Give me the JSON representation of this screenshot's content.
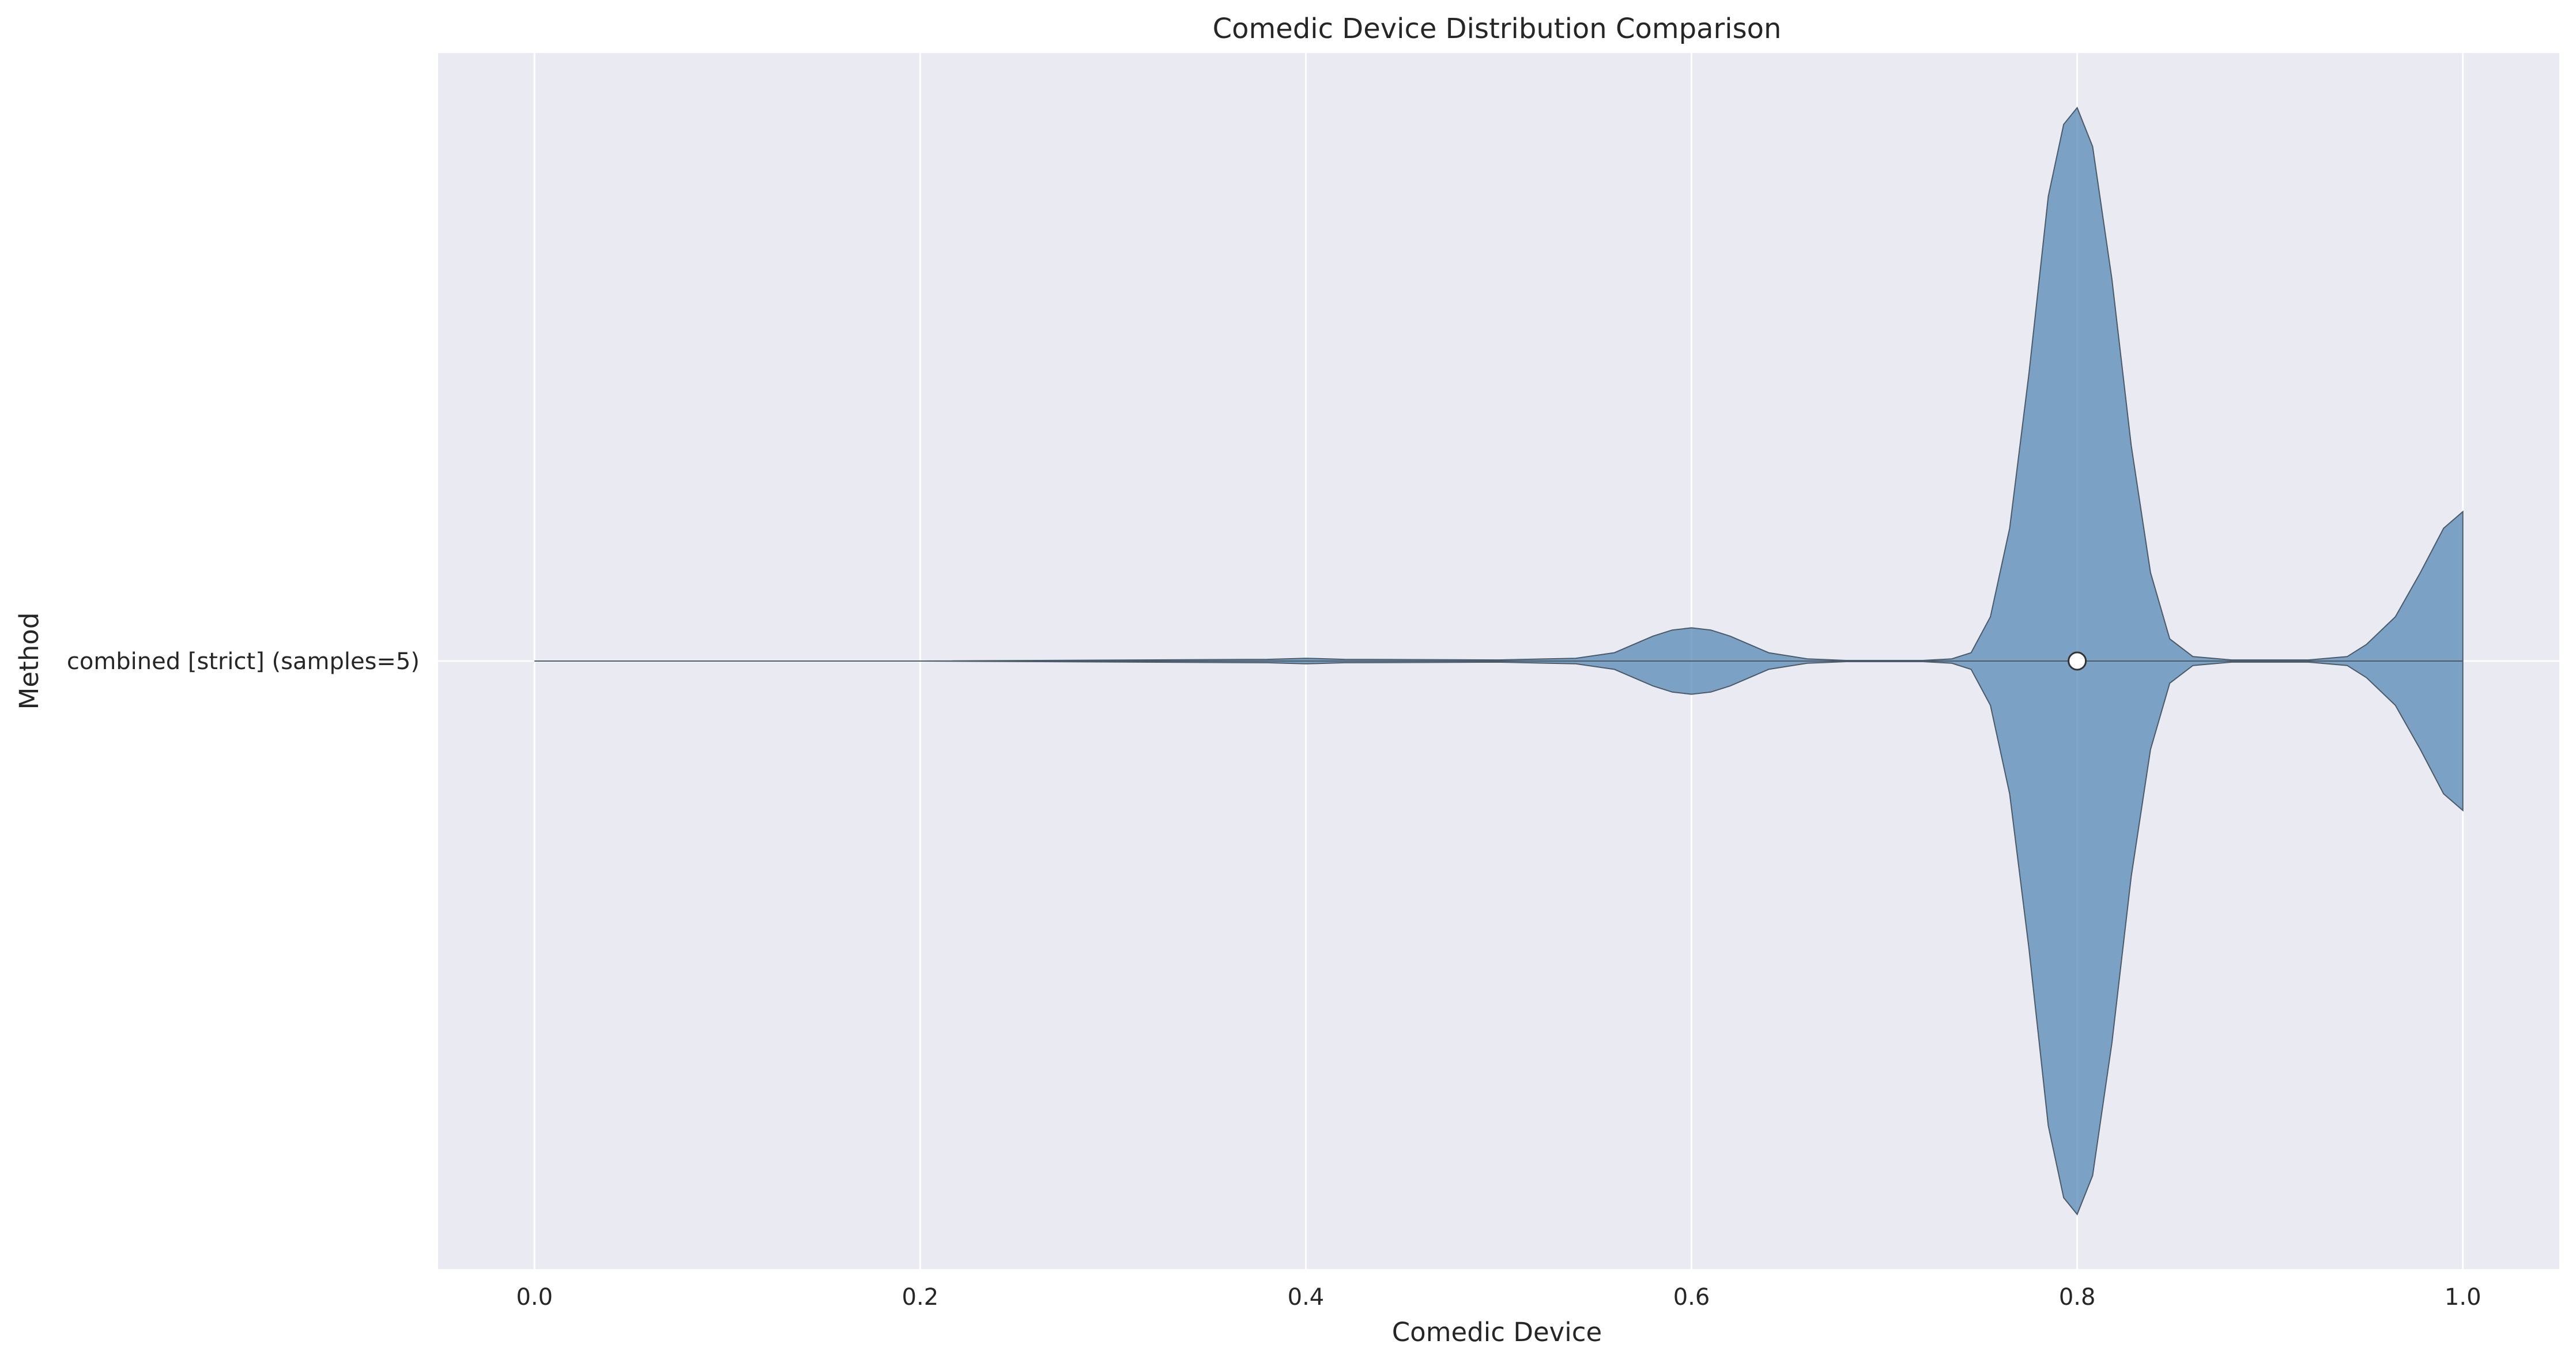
{
  "chart_data": {
    "type": "violin",
    "title": "Comedic Device Distribution Comparison",
    "xlabel": "Comedic Device",
    "ylabel": "Method",
    "xlim": [
      -0.05,
      1.05
    ],
    "x_ticks": [
      0.0,
      0.2,
      0.4,
      0.6,
      0.8,
      1.0
    ],
    "x_tick_labels": [
      "0.0",
      "0.2",
      "0.4",
      "0.6",
      "0.8",
      "1.0"
    ],
    "grid": true,
    "colors": {
      "background": "#eaeaf2",
      "violin_fill": "#5b8db8",
      "violin_edge": "#4a5a68",
      "grid": "#ffffff"
    },
    "series": [
      {
        "category": "combined [strict] (samples=5)",
        "median": 0.8,
        "density": [
          [
            0.0,
            0.0
          ],
          [
            0.2,
            0.0
          ],
          [
            0.38,
            0.003
          ],
          [
            0.4,
            0.005
          ],
          [
            0.42,
            0.003
          ],
          [
            0.5,
            0.002
          ],
          [
            0.54,
            0.005
          ],
          [
            0.56,
            0.015
          ],
          [
            0.57,
            0.03
          ],
          [
            0.58,
            0.045
          ],
          [
            0.59,
            0.056
          ],
          [
            0.6,
            0.06
          ],
          [
            0.61,
            0.056
          ],
          [
            0.62,
            0.045
          ],
          [
            0.63,
            0.03
          ],
          [
            0.64,
            0.015
          ],
          [
            0.66,
            0.004
          ],
          [
            0.68,
            0.001
          ],
          [
            0.72,
            0.001
          ],
          [
            0.735,
            0.004
          ],
          [
            0.745,
            0.015
          ],
          [
            0.755,
            0.08
          ],
          [
            0.765,
            0.24
          ],
          [
            0.775,
            0.52
          ],
          [
            0.785,
            0.84
          ],
          [
            0.793,
            0.97
          ],
          [
            0.8,
            1.0
          ],
          [
            0.808,
            0.93
          ],
          [
            0.818,
            0.69
          ],
          [
            0.828,
            0.39
          ],
          [
            0.838,
            0.16
          ],
          [
            0.848,
            0.04
          ],
          [
            0.86,
            0.008
          ],
          [
            0.88,
            0.002
          ],
          [
            0.92,
            0.002
          ],
          [
            0.94,
            0.008
          ],
          [
            0.95,
            0.03
          ],
          [
            0.965,
            0.08
          ],
          [
            0.978,
            0.16
          ],
          [
            0.99,
            0.24
          ],
          [
            1.0,
            0.27
          ]
        ]
      }
    ]
  }
}
